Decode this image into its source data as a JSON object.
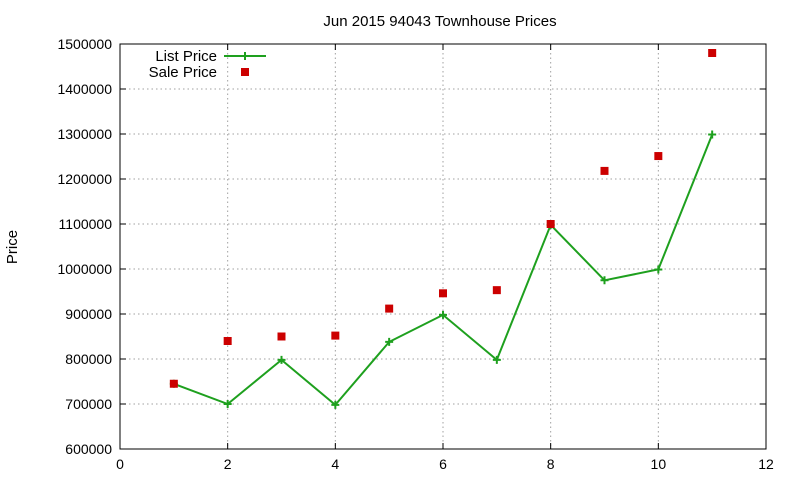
{
  "chart_data": {
    "type": "line",
    "title": "Jun 2015 94043 Townhouse Prices",
    "xlabel": "",
    "ylabel": "Price",
    "xlim": [
      0,
      12
    ],
    "ylim": [
      600000,
      1500000
    ],
    "x_ticks": [
      0,
      2,
      4,
      6,
      8,
      10,
      12
    ],
    "y_ticks": [
      600000,
      700000,
      800000,
      900000,
      1000000,
      1100000,
      1200000,
      1300000,
      1400000,
      1500000
    ],
    "grid": true,
    "legend_position": "top-left",
    "series": [
      {
        "name": "List Price",
        "style": "line-with-plus-markers",
        "color": "#1ea01e",
        "x": [
          1,
          2,
          3,
          4,
          5,
          6,
          7,
          8,
          9,
          10,
          11
        ],
        "values": [
          745000,
          700000,
          798000,
          698000,
          838000,
          898000,
          798000,
          1098000,
          975000,
          999000,
          1299000
        ]
      },
      {
        "name": "Sale Price",
        "style": "square-markers",
        "color": "#cc0000",
        "x": [
          1,
          2,
          3,
          4,
          5,
          6,
          7,
          8,
          9,
          10,
          11
        ],
        "values": [
          745000,
          840000,
          850000,
          852000,
          912000,
          946000,
          953000,
          1100000,
          1218000,
          1251000,
          1480000
        ]
      }
    ]
  }
}
